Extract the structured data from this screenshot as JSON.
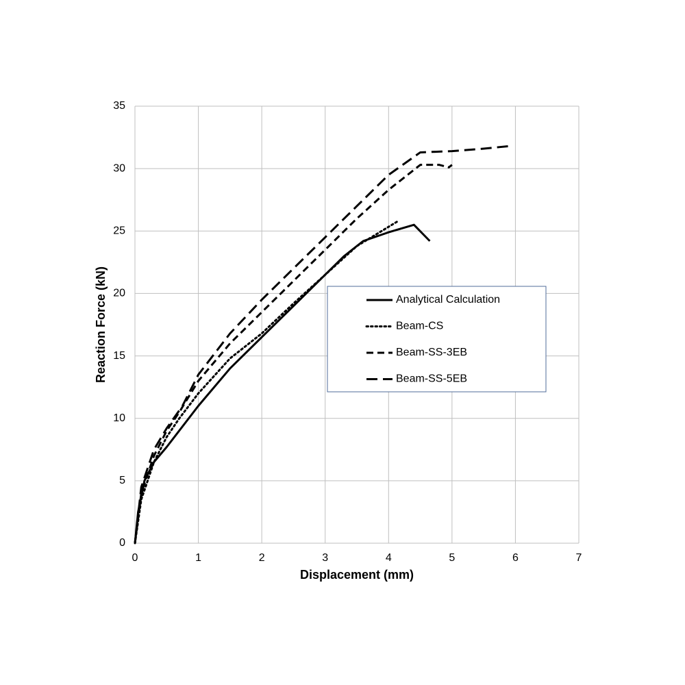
{
  "chart_data": {
    "type": "line",
    "x_label": "Displacement (mm)",
    "y_label": "Reaction Force (kN)",
    "xlim": [
      0,
      7
    ],
    "xticks": [
      0,
      1,
      2,
      3,
      4,
      5,
      6,
      7
    ],
    "ylim": [
      0,
      35
    ],
    "yticks": [
      0,
      5,
      10,
      15,
      20,
      25,
      30,
      35
    ],
    "grid": true,
    "legend": "right",
    "series": [
      {
        "name": "Analytical Calculation",
        "color": "#000000",
        "dash": "solid",
        "x": [
          0,
          0.05,
          0.15,
          0.3,
          0.5,
          1,
          1.5,
          2,
          2.5,
          3,
          3.3,
          3.6,
          4.0,
          4.4,
          4.65
        ],
        "values": [
          0,
          2.5,
          5,
          6.5,
          7.7,
          11,
          14,
          16.5,
          19,
          21.5,
          23,
          24.2,
          24.9,
          25.5,
          24.2
        ]
      },
      {
        "name": "Beam-CS",
        "color": "#000000",
        "dash": "dotted",
        "x": [
          0,
          0.1,
          0.3,
          0.5,
          0.7,
          1,
          1.5,
          2,
          2.5,
          3,
          3.5,
          4.15
        ],
        "values": [
          0,
          3.5,
          6.5,
          8.5,
          10,
          12,
          14.8,
          16.8,
          19.2,
          21.5,
          23.8,
          25.8
        ]
      },
      {
        "name": "Beam-SS-3EB",
        "color": "#000000",
        "dash": "dashed",
        "x": [
          0,
          0.1,
          0.3,
          0.5,
          0.7,
          1,
          1.5,
          2,
          2.5,
          3,
          3.5,
          4,
          4.5,
          4.8,
          4.95,
          5.0
        ],
        "values": [
          0,
          4,
          7,
          9,
          10.5,
          13,
          16,
          18.5,
          21,
          23.5,
          26,
          28.3,
          30.3,
          30.3,
          30.1,
          30.3
        ]
      },
      {
        "name": "Beam-SS-5EB",
        "color": "#000000",
        "dash": "long-dashed",
        "x": [
          0,
          0.1,
          0.3,
          0.5,
          0.75,
          1,
          1.5,
          2,
          2.5,
          3,
          3.5,
          4,
          4.5,
          5,
          5.5,
          5.9
        ],
        "values": [
          0,
          4.5,
          7.5,
          9.2,
          11,
          13.5,
          16.8,
          19.5,
          22,
          24.5,
          27,
          29.5,
          31.3,
          31.4,
          31.6,
          31.8
        ]
      }
    ]
  }
}
